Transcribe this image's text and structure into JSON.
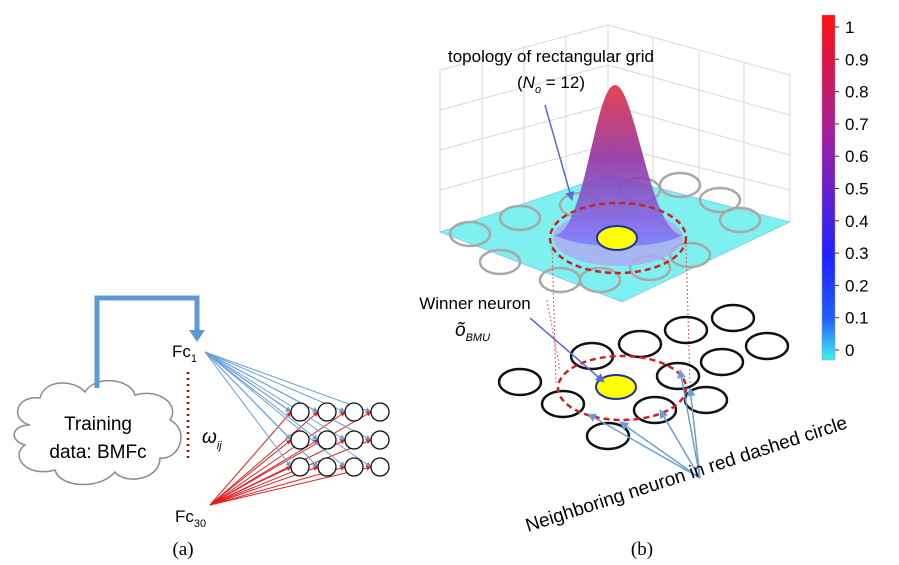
{
  "panel_a": {
    "label": "(a)",
    "cloud": {
      "line1": "Training",
      "line2": "data: BMFc"
    },
    "input_first": {
      "text": "Fc",
      "sub": "1"
    },
    "input_last": {
      "text": "Fc",
      "sub": "30"
    },
    "weight": {
      "symbol": "ω",
      "sub": "ij"
    }
  },
  "panel_b": {
    "label": "(b)",
    "topology": {
      "line1": "topology of rectangular grid",
      "open": "(",
      "symbol": "N",
      "sub": "o",
      "rest": " = 12)"
    },
    "winner": {
      "line1": "Winner neuron",
      "symbol": "õ",
      "sub": "BMU"
    },
    "neighbor": "Neighboring neuron in red dashed circle",
    "colorbar": {
      "ticks": [
        0,
        0.1,
        0.2,
        0.3,
        0.4,
        0.5,
        0.6,
        0.7,
        0.8,
        0.9,
        1
      ]
    }
  }
}
